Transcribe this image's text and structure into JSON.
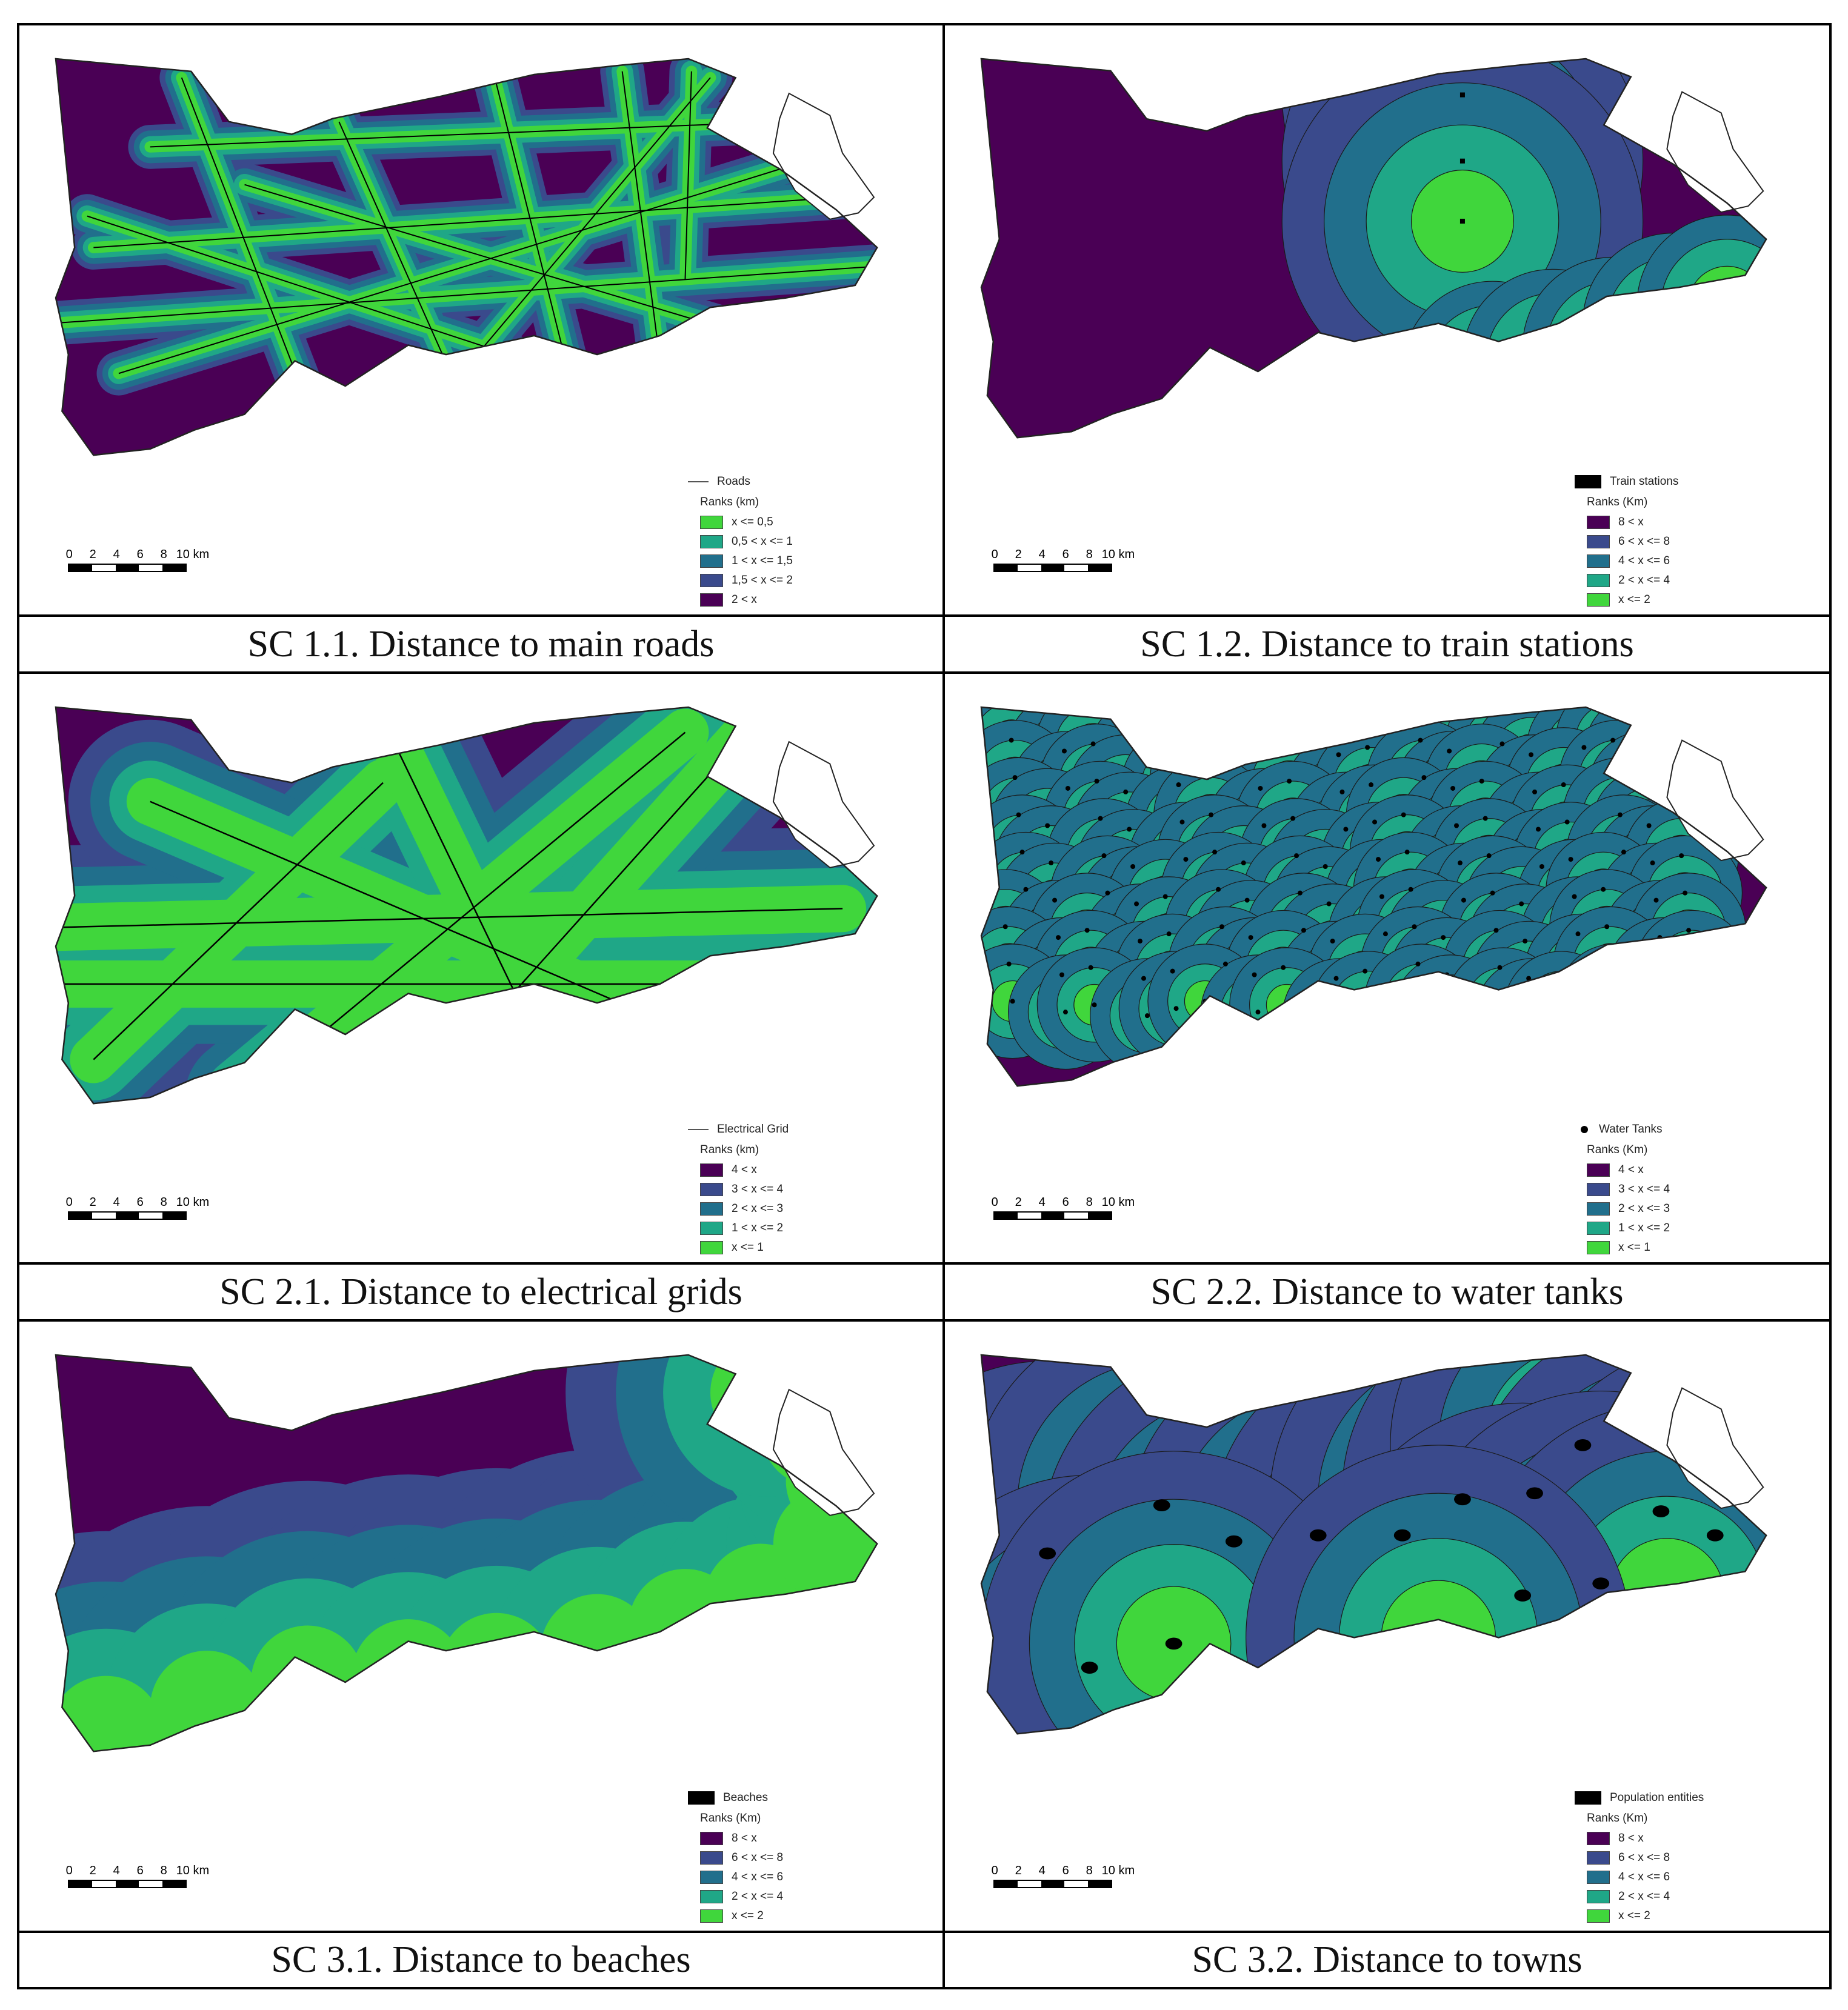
{
  "colors": {
    "class1": "#4a0055",
    "class2": "#3a4a8c",
    "class3": "#216f8c",
    "class4": "#1fa787",
    "class5": "#40d63c",
    "feature": "#000000"
  },
  "scalebar": {
    "ticks": [
      "0",
      "2",
      "4",
      "6",
      "8",
      "10 km"
    ]
  },
  "panels": [
    {
      "caption": "SC 1.1. Distance to main roads",
      "feature": {
        "label": "Roads",
        "symbol": "line"
      },
      "legend_title": "Ranks (km)",
      "legend": [
        {
          "label": "x <= 0,5",
          "color": "#40d63c"
        },
        {
          "label": "0,5 < x <= 1",
          "color": "#1fa787"
        },
        {
          "label": "1 < x <= 1,5",
          "color": "#216f8c"
        },
        {
          "label": "1,5 < x <= 2",
          "color": "#3a4a8c"
        },
        {
          "label": "2 < x",
          "color": "#4a0055"
        }
      ]
    },
    {
      "caption": "SC 1.2. Distance to train stations",
      "feature": {
        "label": "Train stations",
        "symbol": "box"
      },
      "legend_title": "Ranks (Km)",
      "legend": [
        {
          "label": "8 < x",
          "color": "#4a0055"
        },
        {
          "label": "6 < x <= 8",
          "color": "#3a4a8c"
        },
        {
          "label": "4 < x <= 6",
          "color": "#216f8c"
        },
        {
          "label": "2 < x <= 4",
          "color": "#1fa787"
        },
        {
          "label": "x <= 2",
          "color": "#40d63c"
        }
      ]
    },
    {
      "caption": "SC 2.1. Distance to electrical grids",
      "feature": {
        "label": "Electrical Grid",
        "symbol": "line"
      },
      "legend_title": "Ranks (km)",
      "legend": [
        {
          "label": "4 < x",
          "color": "#4a0055"
        },
        {
          "label": "3 < x <= 4",
          "color": "#3a4a8c"
        },
        {
          "label": "2 < x <= 3",
          "color": "#216f8c"
        },
        {
          "label": "1 < x <= 2",
          "color": "#1fa787"
        },
        {
          "label": "x <= 1",
          "color": "#40d63c"
        }
      ]
    },
    {
      "caption": "SC 2.2. Distance to water tanks",
      "feature": {
        "label": "Water Tanks",
        "symbol": "dot"
      },
      "legend_title": "Ranks (Km)",
      "legend": [
        {
          "label": "4 < x",
          "color": "#4a0055"
        },
        {
          "label": "3 < x <= 4",
          "color": "#3a4a8c"
        },
        {
          "label": "2 < x <= 3",
          "color": "#216f8c"
        },
        {
          "label": "1 < x <= 2",
          "color": "#1fa787"
        },
        {
          "label": "x <= 1",
          "color": "#40d63c"
        }
      ]
    },
    {
      "caption": "SC 3.1. Distance to beaches",
      "feature": {
        "label": "Beaches",
        "symbol": "box"
      },
      "legend_title": "Ranks (Km)",
      "legend": [
        {
          "label": "8 < x",
          "color": "#4a0055"
        },
        {
          "label": "6 < x <= 8",
          "color": "#3a4a8c"
        },
        {
          "label": "4 < x <= 6",
          "color": "#216f8c"
        },
        {
          "label": "2 < x <= 4",
          "color": "#1fa787"
        },
        {
          "label": "x <= 2",
          "color": "#40d63c"
        }
      ]
    },
    {
      "caption": "SC 3.2. Distance to towns",
      "feature": {
        "label": "Population entities",
        "symbol": "box"
      },
      "legend_title": "Ranks (Km)",
      "legend": [
        {
          "label": "8 < x",
          "color": "#4a0055"
        },
        {
          "label": "6 < x <= 8",
          "color": "#3a4a8c"
        },
        {
          "label": "4 < x <= 6",
          "color": "#216f8c"
        },
        {
          "label": "2 < x <= 4",
          "color": "#1fa787"
        },
        {
          "label": "x <= 2",
          "color": "#40d63c"
        }
      ]
    }
  ]
}
